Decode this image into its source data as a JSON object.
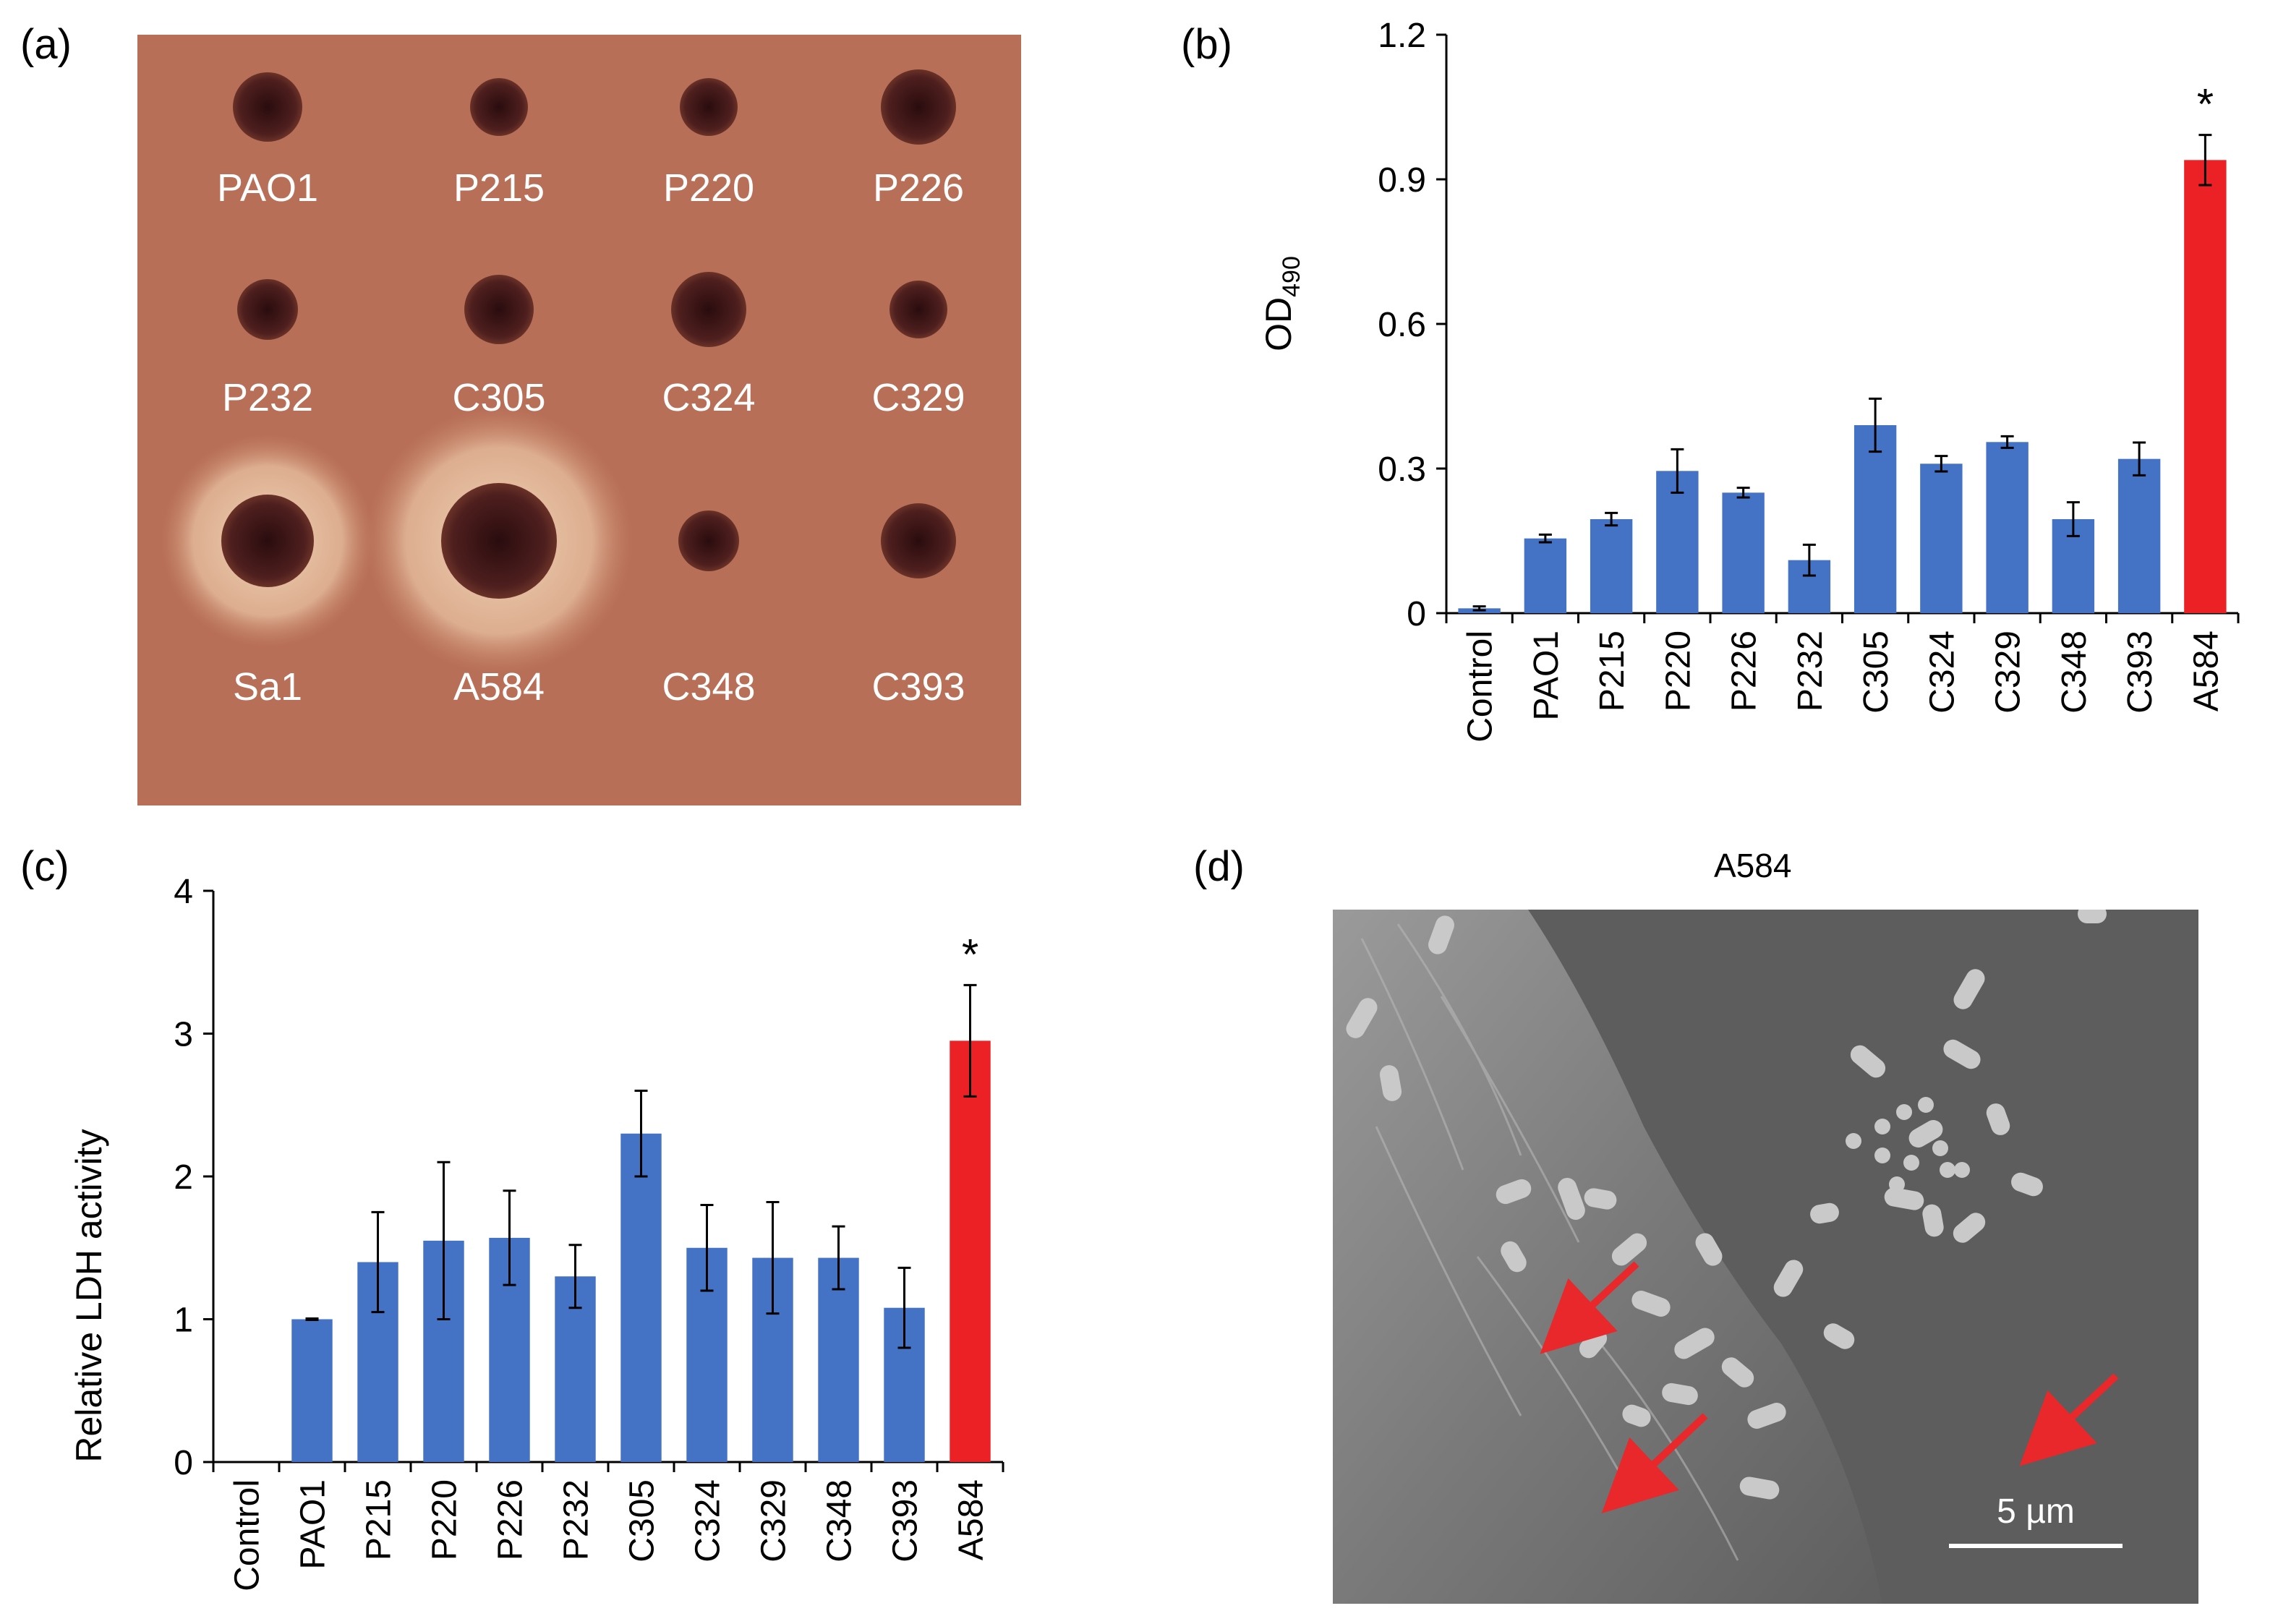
{
  "panels": {
    "a": {
      "letter": "(a)"
    },
    "b": {
      "letter": "(b)"
    },
    "c": {
      "letter": "(c)"
    },
    "d": {
      "letter": "(d)",
      "title": "A584",
      "scale_bar_label": "5 µm"
    }
  },
  "plate": {
    "background_color": "#b86f58",
    "colony_color": "#4a1d1c",
    "halo_color": "#e8c2a4",
    "spots": [
      {
        "label": "PAO1",
        "halo": false
      },
      {
        "label": "P215",
        "halo": false
      },
      {
        "label": "P220",
        "halo": false
      },
      {
        "label": "P226",
        "halo": false
      },
      {
        "label": "P232",
        "halo": false
      },
      {
        "label": "C305",
        "halo": false
      },
      {
        "label": "C324",
        "halo": false
      },
      {
        "label": "C329",
        "halo": false
      },
      {
        "label": "Sa1",
        "halo": true
      },
      {
        "label": "A584",
        "halo": true
      },
      {
        "label": "C348",
        "halo": false
      },
      {
        "label": "C393",
        "halo": false
      }
    ]
  },
  "sem": {
    "background_color": "#5d5d5d",
    "cell_color": "#8a8a8a",
    "bacteria_color": "#c9c9c9",
    "arrow_color": "#e8282b"
  },
  "chart_data": [
    {
      "panel": "b",
      "type": "bar",
      "categories": [
        "Control",
        "PAO1",
        "P215",
        "P220",
        "P226",
        "P232",
        "C305",
        "C324",
        "C329",
        "C348",
        "C393",
        "A584"
      ],
      "values": [
        0.01,
        0.155,
        0.195,
        0.295,
        0.25,
        0.11,
        0.39,
        0.31,
        0.355,
        0.195,
        0.32,
        0.94
      ],
      "errors": [
        0.004,
        0.008,
        0.013,
        0.045,
        0.01,
        0.032,
        0.055,
        0.016,
        0.012,
        0.035,
        0.034,
        0.052
      ],
      "colors": [
        "#4472c4",
        "#4472c4",
        "#4472c4",
        "#4472c4",
        "#4472c4",
        "#4472c4",
        "#4472c4",
        "#4472c4",
        "#4472c4",
        "#4472c4",
        "#4472c4",
        "#ec2126"
      ],
      "ylabel_main": "OD",
      "ylabel_sub": "490",
      "ylim": [
        0,
        1.2
      ],
      "yticks": [
        "0",
        "0.3",
        "0.6",
        "0.9",
        "1.2"
      ],
      "ytick_values": [
        0,
        0.3,
        0.6,
        0.9,
        1.2
      ],
      "annotations": [
        {
          "category": "A584",
          "text": "*"
        }
      ],
      "grid": false
    },
    {
      "panel": "c",
      "type": "bar",
      "categories": [
        "Control",
        "PAO1",
        "P215",
        "P220",
        "P226",
        "P232",
        "C305",
        "C324",
        "C329",
        "C348",
        "C393",
        "A584"
      ],
      "values": [
        0,
        1.0,
        1.4,
        1.55,
        1.57,
        1.3,
        2.3,
        1.5,
        1.43,
        1.43,
        1.08,
        2.95
      ],
      "errors": [
        0,
        0.005,
        0.35,
        0.55,
        0.33,
        0.22,
        0.3,
        0.3,
        0.39,
        0.22,
        0.28,
        0.39
      ],
      "colors": [
        "#4472c4",
        "#4472c4",
        "#4472c4",
        "#4472c4",
        "#4472c4",
        "#4472c4",
        "#4472c4",
        "#4472c4",
        "#4472c4",
        "#4472c4",
        "#4472c4",
        "#ec2126"
      ],
      "ylabel_main": "Relative LDH activity",
      "ylim": [
        0,
        4
      ],
      "yticks": [
        "0",
        "1",
        "2",
        "3",
        "4"
      ],
      "ytick_values": [
        0,
        1,
        2,
        3,
        4
      ],
      "annotations": [
        {
          "category": "A584",
          "text": "*"
        }
      ],
      "grid": false
    }
  ]
}
